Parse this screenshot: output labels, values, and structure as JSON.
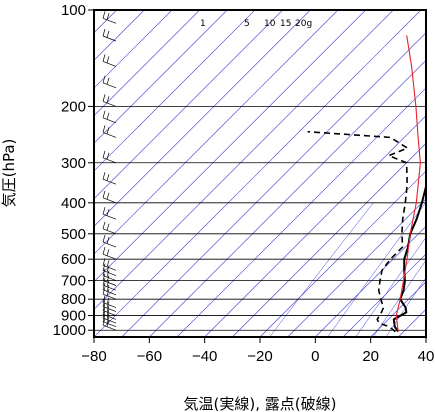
{
  "chart_data": {
    "type": "line",
    "subtype": "skew-t log-p thermodynamic diagram",
    "xlabel": "気温(実線), 露点(破線)",
    "ylabel": "気圧(hPa)",
    "xlim": [
      -80,
      40
    ],
    "ylim": [
      1050,
      100
    ],
    "y_scale": "log",
    "x_ticks": [
      -80,
      -60,
      -40,
      -20,
      0,
      20,
      40
    ],
    "x_tick_labels": [
      "−80",
      "−60",
      "−40",
      "−20",
      "0",
      "20",
      "40"
    ],
    "y_ticks": [
      100,
      200,
      300,
      400,
      500,
      600,
      700,
      800,
      900,
      1000
    ],
    "y_tick_labels": [
      "100",
      "200",
      "300",
      "400",
      "500",
      "600",
      "700",
      "800",
      "900",
      "1000"
    ],
    "mixing_ratio_labels": [
      "1",
      "5",
      "10",
      "15",
      "20g"
    ],
    "mixing_ratio_values": [
      1,
      5,
      10,
      15,
      20
    ],
    "colors": {
      "temperature": "#000000",
      "dewpoint": "#000000",
      "parcel": "#e8202a",
      "isotherms": "#3b3bd6",
      "isobars": "#000000",
      "frame": "#000000"
    },
    "series": [
      {
        "name": "気温",
        "style": "solid",
        "points": [
          {
            "p": 1010,
            "t": 28
          },
          {
            "p": 975,
            "t": 25
          },
          {
            "p": 925,
            "t": 22
          },
          {
            "p": 880,
            "t": 24
          },
          {
            "p": 850,
            "t": 22
          },
          {
            "p": 800,
            "t": 17
          },
          {
            "p": 750,
            "t": 15
          },
          {
            "p": 700,
            "t": 12
          },
          {
            "p": 650,
            "t": 8
          },
          {
            "p": 600,
            "t": 4
          },
          {
            "p": 550,
            "t": 1
          },
          {
            "p": 500,
            "t": -3
          },
          {
            "p": 450,
            "t": -6
          },
          {
            "p": 400,
            "t": -10
          },
          {
            "p": 350,
            "t": -15
          },
          {
            "p": 300,
            "t": -22
          },
          {
            "p": 270,
            "t": -27
          },
          {
            "p": 250,
            "t": -32
          },
          {
            "p": 225,
            "t": -37
          },
          {
            "p": 200,
            "t": -43
          },
          {
            "p": 175,
            "t": -50
          },
          {
            "p": 150,
            "t": -57
          },
          {
            "p": 135,
            "t": -63
          },
          {
            "p": 120,
            "t": -68
          },
          {
            "p": 112,
            "t": -72
          },
          {
            "p": 106,
            "t": -68
          },
          {
            "p": 100,
            "t": -66
          }
        ]
      },
      {
        "name": "露点",
        "style": "dashed",
        "points": [
          {
            "p": 1010,
            "t": 27
          },
          {
            "p": 975,
            "t": 23
          },
          {
            "p": 950,
            "t": 18
          },
          {
            "p": 925,
            "t": 16
          },
          {
            "p": 880,
            "t": 15
          },
          {
            "p": 850,
            "t": 14
          },
          {
            "p": 800,
            "t": 10
          },
          {
            "p": 750,
            "t": 6
          },
          {
            "p": 700,
            "t": 3
          },
          {
            "p": 650,
            "t": 0
          },
          {
            "p": 600,
            "t": -1
          },
          {
            "p": 550,
            "t": -1
          },
          {
            "p": 500,
            "t": -6
          },
          {
            "p": 450,
            "t": -11
          },
          {
            "p": 400,
            "t": -16
          },
          {
            "p": 350,
            "t": -22
          },
          {
            "p": 300,
            "t": -30
          },
          {
            "p": 285,
            "t": -39
          },
          {
            "p": 270,
            "t": -35
          },
          {
            "p": 250,
            "t": -45
          },
          {
            "p": 240,
            "t": -77
          }
        ]
      },
      {
        "name": "",
        "style": "solid",
        "points": [
          {
            "p": 1010,
            "t": 28
          },
          {
            "p": 900,
            "t": 21.5
          },
          {
            "p": 800,
            "t": 17
          },
          {
            "p": 700,
            "t": 11.5
          },
          {
            "p": 600,
            "t": 5
          },
          {
            "p": 500,
            "t": -3
          },
          {
            "p": 400,
            "t": -12
          },
          {
            "p": 300,
            "t": -25
          },
          {
            "p": 250,
            "t": -35
          },
          {
            "p": 200,
            "t": -47
          },
          {
            "p": 150,
            "t": -63
          },
          {
            "p": 120,
            "t": -76
          }
        ]
      }
    ],
    "wind_barbs": [
      {
        "p": 1000
      },
      {
        "p": 975
      },
      {
        "p": 950
      },
      {
        "p": 925
      },
      {
        "p": 900
      },
      {
        "p": 875
      },
      {
        "p": 850
      },
      {
        "p": 800
      },
      {
        "p": 775
      },
      {
        "p": 750
      },
      {
        "p": 725
      },
      {
        "p": 700
      },
      {
        "p": 675
      },
      {
        "p": 650
      },
      {
        "p": 600
      },
      {
        "p": 550
      },
      {
        "p": 500
      },
      {
        "p": 450
      },
      {
        "p": 400
      },
      {
        "p": 350
      },
      {
        "p": 300
      },
      {
        "p": 250
      },
      {
        "p": 225
      },
      {
        "p": 200
      },
      {
        "p": 175
      },
      {
        "p": 150
      },
      {
        "p": 125
      },
      {
        "p": 110
      },
      {
        "p": 100
      }
    ]
  }
}
